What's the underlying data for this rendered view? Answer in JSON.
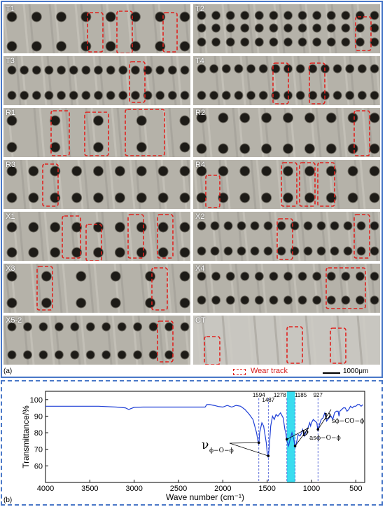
{
  "panel_a": {
    "tag": "(a)",
    "tiles": [
      {
        "label": "T1"
      },
      {
        "label": "T2"
      },
      {
        "label": "T3"
      },
      {
        "label": "T4"
      },
      {
        "label": "R1"
      },
      {
        "label": "R2"
      },
      {
        "label": "R3"
      },
      {
        "label": "R4"
      },
      {
        "label": "X1"
      },
      {
        "label": "X2"
      },
      {
        "label": "X3"
      },
      {
        "label": "X4"
      },
      {
        "label": "X5-2"
      },
      {
        "label": "CT"
      }
    ],
    "legend_label": "Wear track",
    "scale_bar_label": "1000μm",
    "colors": {
      "wear_track": "#e0221e",
      "border": "#4a78c8"
    }
  },
  "panel_b": {
    "tag": "(b)",
    "chart_data": {
      "type": "line",
      "xlabel": "Wave number (cm⁻¹)",
      "ylabel": "Transmittance/%",
      "xlim": [
        4000,
        400
      ],
      "ylim": [
        50,
        105
      ],
      "xticks": [
        4000,
        3500,
        3000,
        2500,
        2000,
        1500,
        1000,
        500
      ],
      "yticks": [
        60,
        70,
        80,
        90,
        100
      ],
      "peak_labels": [
        "1594",
        "1487",
        "1278",
        "1185",
        "927"
      ],
      "highlight_band": [
        1278,
        1185
      ],
      "annotations": [
        {
          "main": "ν",
          "sub": "ϕ−O−ϕ"
        },
        {
          "main": "ν",
          "sub": "asϕ−O−ϕ"
        },
        {
          "main": "ν",
          "sub": "sϕ−CO−ϕ"
        }
      ],
      "series": [
        {
          "color": "#1f3fd6",
          "x": [
            4000,
            3800,
            3600,
            3400,
            3200,
            3100,
            3060,
            3040,
            3000,
            2900,
            2700,
            2500,
            2300,
            2200,
            2180,
            2150,
            2100,
            2050,
            2000,
            1950,
            1900,
            1850,
            1800,
            1750,
            1700,
            1660,
            1620,
            1600,
            1594,
            1585,
            1560,
            1540,
            1510,
            1500,
            1487,
            1475,
            1460,
            1440,
            1420,
            1400,
            1380,
            1350,
            1320,
            1300,
            1290,
            1278,
            1260,
            1240,
            1220,
            1200,
            1185,
            1170,
            1150,
            1130,
            1110,
            1100,
            1080,
            1060,
            1040,
            1020,
            1010,
            1000,
            980,
            960,
            940,
            927,
            910,
            890,
            870,
            850,
            830,
            800,
            780,
            760,
            740,
            720,
            700,
            690,
            680,
            660,
            640,
            620,
            600,
            580,
            560,
            540,
            520,
            500,
            480,
            460,
            440,
            420
          ],
          "y": [
            96,
            96,
            96,
            96,
            95.5,
            95,
            94,
            94.5,
            95.3,
            95.5,
            95.5,
            95.5,
            95.5,
            95.5,
            97,
            97,
            96.5,
            95.8,
            95.5,
            96.5,
            95.5,
            96.5,
            96,
            94,
            91,
            88,
            80,
            74,
            73,
            80,
            86,
            84,
            74,
            68,
            65,
            72,
            84,
            90,
            88,
            91,
            90,
            92,
            89,
            82,
            80,
            75,
            72,
            76,
            80,
            76,
            71,
            74,
            79,
            78,
            80,
            82,
            78,
            81,
            83,
            86,
            84,
            86,
            88,
            87,
            86,
            81,
            85,
            88,
            89,
            92,
            87,
            89,
            90,
            88,
            92,
            93,
            93,
            90,
            93,
            94,
            95,
            95,
            93,
            94,
            96,
            95,
            96,
            96,
            97,
            97,
            96,
            97
          ]
        }
      ]
    }
  }
}
